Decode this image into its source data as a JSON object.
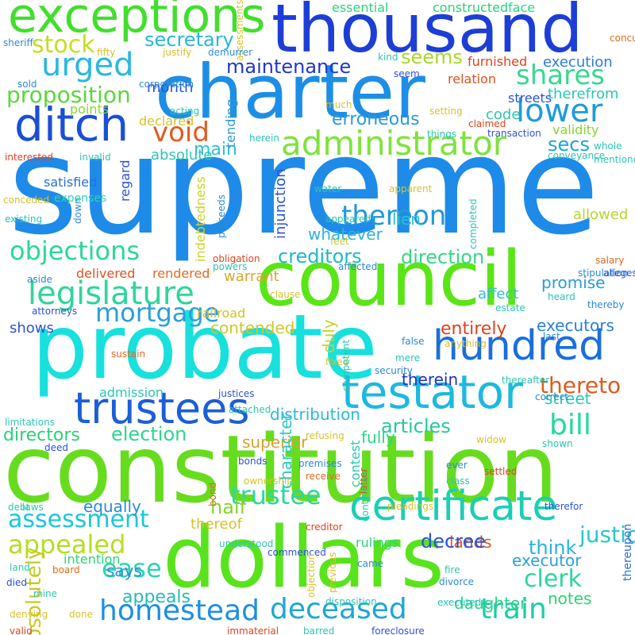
{
  "cloud": {
    "words": [
      {
        "text": "supreme",
        "color": "#1e8be8",
        "vertical": false
      },
      {
        "text": "constitution",
        "color": "#67dc1f",
        "vertical": false
      },
      {
        "text": "probate",
        "color": "#18e0dd",
        "vertical": false
      },
      {
        "text": "dollars",
        "color": "#59e31c",
        "vertical": false
      },
      {
        "text": "council",
        "color": "#5ae516",
        "vertical": false
      },
      {
        "text": "charter",
        "color": "#1d8ee6",
        "vertical": false
      },
      {
        "text": "thousand",
        "color": "#1d3ed6",
        "vertical": false
      },
      {
        "text": "exceptions",
        "color": "#41df2d",
        "vertical": false
      },
      {
        "text": "testator",
        "color": "#1cb9e0",
        "vertical": false
      },
      {
        "text": "trustees",
        "color": "#1c5ed8",
        "vertical": false
      },
      {
        "text": "hundred",
        "color": "#1a6fdb",
        "vertical": false
      },
      {
        "text": "certificate",
        "color": "#1acfb2",
        "vertical": false
      },
      {
        "text": "ditch",
        "color": "#1a4fd6",
        "vertical": false
      },
      {
        "text": "administrator",
        "color": "#7ee33a",
        "vertical": false
      },
      {
        "text": "legislature",
        "color": "#2fd59a",
        "vertical": false
      },
      {
        "text": "homestead",
        "color": "#1d8fe2",
        "vertical": false
      },
      {
        "text": "deceased",
        "color": "#1fa6d4",
        "vertical": false
      },
      {
        "text": "train",
        "color": "#1dcda4",
        "vertical": false
      },
      {
        "text": "objections",
        "color": "#2bd795",
        "vertical": false
      },
      {
        "text": "assessment",
        "color": "#1ac6df",
        "vertical": false
      },
      {
        "text": "appealed",
        "color": "#b6dd22",
        "vertical": false
      },
      {
        "text": "urged",
        "color": "#2ab8e0",
        "vertical": false
      },
      {
        "text": "shares",
        "color": "#38d88e",
        "vertical": false
      },
      {
        "text": "lower",
        "color": "#1b9cd8",
        "vertical": false
      },
      {
        "text": "mortgage",
        "color": "#2a9fd8",
        "vertical": false
      },
      {
        "text": "bill",
        "color": "#25d99b",
        "vertical": false
      },
      {
        "text": "trustee",
        "color": "#2ed7a0",
        "vertical": false
      },
      {
        "text": "void",
        "color": "#e05a22",
        "vertical": false
      },
      {
        "text": "ease",
        "color": "#2ad6b0",
        "vertical": false
      },
      {
        "text": "election",
        "color": "#2fd68c",
        "vertical": false
      },
      {
        "text": "direction",
        "color": "#34d886",
        "vertical": false
      },
      {
        "text": "creditors",
        "color": "#1db9c6",
        "vertical": false
      },
      {
        "text": "stock",
        "color": "#c6dd25",
        "vertical": false
      },
      {
        "text": "secretary",
        "color": "#27b7dd",
        "vertical": false
      },
      {
        "text": "proposition",
        "color": "#5bd83a",
        "vertical": false
      },
      {
        "text": "maintenance",
        "color": "#2238c9",
        "vertical": false
      },
      {
        "text": "seems",
        "color": "#a8d92a",
        "vertical": false
      },
      {
        "text": "secs",
        "color": "#1aa7d4",
        "vertical": false
      },
      {
        "text": "main",
        "color": "#2bbfd4",
        "vertical": false
      },
      {
        "text": "thereon",
        "color": "#1f9ad8",
        "vertical": false
      },
      {
        "text": "thereto",
        "color": "#e05a1e",
        "vertical": false
      },
      {
        "text": "entirely",
        "color": "#e0421b",
        "vertical": false
      },
      {
        "text": "executors",
        "color": "#2a7fdb",
        "vertical": false
      },
      {
        "text": "articles",
        "color": "#26c99c",
        "vertical": false
      },
      {
        "text": "clerk",
        "color": "#2bd59e",
        "vertical": false
      },
      {
        "text": "justice",
        "color": "#2ac7cf",
        "vertical": false
      },
      {
        "text": "think",
        "color": "#25b3dd",
        "vertical": false
      },
      {
        "text": "directors",
        "color": "#2ad07a",
        "vertical": false
      },
      {
        "text": "absolutely",
        "color": "#c9c82a",
        "vertical": true
      },
      {
        "text": "duly",
        "color": "#c7d02a",
        "vertical": true
      },
      {
        "text": "distribution",
        "color": "#2bb8dd",
        "vertical": false
      },
      {
        "text": "superior",
        "color": "#d6a22a",
        "vertical": false
      },
      {
        "text": "half",
        "color": "#86d42f",
        "vertical": false
      },
      {
        "text": "appeals",
        "color": "#2bb9b9",
        "vertical": false
      },
      {
        "text": "says",
        "color": "#2f8fdb",
        "vertical": false
      },
      {
        "text": "lands",
        "color": "#e05a1e",
        "vertical": false
      },
      {
        "text": "executor",
        "color": "#2aa2dc",
        "vertical": false
      },
      {
        "text": "daughter",
        "color": "#2ad18e",
        "vertical": false
      },
      {
        "text": "notes",
        "color": "#2bd56f",
        "vertical": false
      },
      {
        "text": "decree",
        "color": "#2b52d8",
        "vertical": false
      },
      {
        "text": "character",
        "color": "#2ac9bf",
        "vertical": true
      },
      {
        "text": "street",
        "color": "#2ac6b5",
        "vertical": false
      },
      {
        "text": "fully",
        "color": "#2bd584",
        "vertical": false
      },
      {
        "text": "therein",
        "color": "#2131c4",
        "vertical": false
      },
      {
        "text": "contended",
        "color": "#d0c62a",
        "vertical": false
      },
      {
        "text": "whatever",
        "color": "#2bb4d8",
        "vertical": false
      },
      {
        "text": "lien",
        "color": "#2bbfd4",
        "vertical": false
      },
      {
        "text": "allowed",
        "color": "#b8d62c",
        "vertical": false
      },
      {
        "text": "affect",
        "color": "#2bc1d4",
        "vertical": false
      },
      {
        "text": "promise",
        "color": "#2b9ad6",
        "vertical": false
      },
      {
        "text": "shows",
        "color": "#2d52d6",
        "vertical": false
      },
      {
        "text": "delivered",
        "color": "#e0521e",
        "vertical": false
      },
      {
        "text": "rendered",
        "color": "#e06a1e",
        "vertical": false
      },
      {
        "text": "warrant",
        "color": "#d6a82a",
        "vertical": false
      },
      {
        "text": "face",
        "color": "#2bd584",
        "vertical": false
      },
      {
        "text": "essential",
        "color": "#2bd57a",
        "vertical": false
      },
      {
        "text": "constructed",
        "color": "#2bd07a",
        "vertical": false
      },
      {
        "text": "execution",
        "color": "#2b7ddb",
        "vertical": false
      },
      {
        "text": "furnished",
        "color": "#e0421b",
        "vertical": false
      },
      {
        "text": "relation",
        "color": "#e0521e",
        "vertical": false
      },
      {
        "text": "therefrom",
        "color": "#2bc6b1",
        "vertical": false
      },
      {
        "text": "validity",
        "color": "#8ad42f",
        "vertical": false
      },
      {
        "text": "erroneous",
        "color": "#2b9ad6",
        "vertical": false
      },
      {
        "text": "code",
        "color": "#2bc6b1",
        "vertical": false
      },
      {
        "text": "streets",
        "color": "#2b52d8",
        "vertical": false
      },
      {
        "text": "month",
        "color": "#2b52d8",
        "vertical": false
      },
      {
        "text": "points",
        "color": "#8ad42f",
        "vertical": false
      },
      {
        "text": "absolute",
        "color": "#2bc6b1",
        "vertical": false
      },
      {
        "text": "satisfied",
        "color": "#2b6ed6",
        "vertical": false
      },
      {
        "text": "expenses",
        "color": "#2bd5b0",
        "vertical": false
      },
      {
        "text": "equally",
        "color": "#2b8ad6",
        "vertical": false
      },
      {
        "text": "intention",
        "color": "#2bd57a",
        "vertical": false
      },
      {
        "text": "thereof",
        "color": "#d6c22a",
        "vertical": false
      },
      {
        "text": "rulings",
        "color": "#2bd57a",
        "vertical": false
      },
      {
        "text": "admission",
        "color": "#2bc6b1",
        "vertical": false
      },
      {
        "text": "railroad",
        "color": "#d6c22a",
        "vertical": false
      },
      {
        "text": "declared",
        "color": "#d6c22a",
        "vertical": false
      },
      {
        "text": "indebtedness",
        "color": "#c8d62a",
        "vertical": true
      },
      {
        "text": "injunction",
        "color": "#2b52d8",
        "vertical": true
      },
      {
        "text": "regard",
        "color": "#2b52d8",
        "vertical": true
      },
      {
        "text": "tending",
        "color": "#2b9ad6",
        "vertical": true
      },
      {
        "text": "contest",
        "color": "#2bc6b1",
        "vertical": true
      },
      {
        "text": "thereupon",
        "color": "#2b6ed6",
        "vertical": true
      },
      {
        "text": "assessments",
        "color": "#d6c22a",
        "vertical": true
      },
      {
        "text": "sheriff",
        "color": "#2b8ad6",
        "vertical": false
      },
      {
        "text": "fifty",
        "color": "#d6c22a",
        "vertical": false
      },
      {
        "text": "justify",
        "color": "#d6c22a",
        "vertical": false
      },
      {
        "text": "demurrer",
        "color": "#2b8ad6",
        "vertical": false
      },
      {
        "text": "concurred",
        "color": "#e06a1e",
        "vertical": false
      },
      {
        "text": "sold",
        "color": "#2b8ad6",
        "vertical": false
      },
      {
        "text": "corporation",
        "color": "#2b8ad6",
        "vertical": false
      },
      {
        "text": "kind",
        "color": "#2bc6b1",
        "vertical": false
      },
      {
        "text": "seem",
        "color": "#2b52d8",
        "vertical": false
      },
      {
        "text": "acting",
        "color": "#2bc6b1",
        "vertical": false
      },
      {
        "text": "much",
        "color": "#d6c22a",
        "vertical": false
      },
      {
        "text": "setting",
        "color": "#d6c22a",
        "vertical": false
      },
      {
        "text": "claimed",
        "color": "#e0421b",
        "vertical": false
      },
      {
        "text": "herein",
        "color": "#2bc6b1",
        "vertical": false
      },
      {
        "text": "things",
        "color": "#2bc6b1",
        "vertical": false
      },
      {
        "text": "transaction",
        "color": "#2b52d8",
        "vertical": false
      },
      {
        "text": "interested",
        "color": "#e0421b",
        "vertical": false
      },
      {
        "text": "invalid",
        "color": "#2bc6b1",
        "vertical": false
      },
      {
        "text": "conveyance",
        "color": "#2bc6b1",
        "vertical": false
      },
      {
        "text": "mentioned",
        "color": "#2bc6b1",
        "vertical": false
      },
      {
        "text": "whole",
        "color": "#2bc6b1",
        "vertical": false
      },
      {
        "text": "water",
        "color": "#2bc6b1",
        "vertical": false
      },
      {
        "text": "apparent",
        "color": "#d6c22a",
        "vertical": false
      },
      {
        "text": "existing",
        "color": "#2bc6b1",
        "vertical": false
      },
      {
        "text": "appeared",
        "color": "#2bc6b1",
        "vertical": false
      },
      {
        "text": "feet",
        "color": "#d6c22a",
        "vertical": false
      },
      {
        "text": "obligation",
        "color": "#e0421b",
        "vertical": false
      },
      {
        "text": "powers",
        "color": "#2bc6b1",
        "vertical": false
      },
      {
        "text": "affected",
        "color": "#2b8ad6",
        "vertical": false
      },
      {
        "text": "stipulation",
        "color": "#2b8ad6",
        "vertical": false
      },
      {
        "text": "alleges",
        "color": "#2b52d8",
        "vertical": false
      },
      {
        "text": "salary",
        "color": "#e06a1e",
        "vertical": false
      },
      {
        "text": "aside",
        "color": "#2b8ad6",
        "vertical": false
      },
      {
        "text": "clause",
        "color": "#d6c22a",
        "vertical": false
      },
      {
        "text": "heard",
        "color": "#2bc6b1",
        "vertical": false
      },
      {
        "text": "estate",
        "color": "#2bc6b1",
        "vertical": false
      },
      {
        "text": "thereby",
        "color": "#2b8ad6",
        "vertical": false
      },
      {
        "text": "attorneys",
        "color": "#2b52d8",
        "vertical": false
      },
      {
        "text": "last",
        "color": "#2b8ad6",
        "vertical": false
      },
      {
        "text": "anything",
        "color": "#d6c22a",
        "vertical": false
      },
      {
        "text": "sustain",
        "color": "#e06a1e",
        "vertical": false
      },
      {
        "text": "false",
        "color": "#2b8ad6",
        "vertical": false
      },
      {
        "text": "fixed",
        "color": "#d6c22a",
        "vertical": false
      },
      {
        "text": "mere",
        "color": "#2bc6b1",
        "vertical": false
      },
      {
        "text": "security",
        "color": "#2b8ad6",
        "vertical": false
      },
      {
        "text": "thereafter",
        "color": "#2bc6b1",
        "vertical": false
      },
      {
        "text": "correct",
        "color": "#2b8ad6",
        "vertical": false
      },
      {
        "text": "justices",
        "color": "#2b52d8",
        "vertical": false
      },
      {
        "text": "attached",
        "color": "#2bc6b1",
        "vertical": false
      },
      {
        "text": "limitations",
        "color": "#2bc6b1",
        "vertical": false
      },
      {
        "text": "refusing",
        "color": "#d6c22a",
        "vertical": false
      },
      {
        "text": "widow",
        "color": "#d6c22a",
        "vertical": false
      },
      {
        "text": "shown",
        "color": "#2bc6b1",
        "vertical": false
      },
      {
        "text": "deed",
        "color": "#2b52d8",
        "vertical": false
      },
      {
        "text": "bonds",
        "color": "#2b52d8",
        "vertical": false
      },
      {
        "text": "premises",
        "color": "#2b8ad6",
        "vertical": false
      },
      {
        "text": "ever",
        "color": "#2b8ad6",
        "vertical": false
      },
      {
        "text": "settled",
        "color": "#e0421b",
        "vertical": false
      },
      {
        "text": "class",
        "color": "#2bc6b1",
        "vertical": false
      },
      {
        "text": "ownership",
        "color": "#d6c22a",
        "vertical": false
      },
      {
        "text": "receive",
        "color": "#e06a1e",
        "vertical": false
      },
      {
        "text": "debt",
        "color": "#2bc6b1",
        "vertical": false
      },
      {
        "text": "laws",
        "color": "#2bc6b1",
        "vertical": false
      },
      {
        "text": "pleadings",
        "color": "#d6c22a",
        "vertical": false
      },
      {
        "text": "therefor",
        "color": "#2b52d8",
        "vertical": false
      },
      {
        "text": "creditor",
        "color": "#e0421b",
        "vertical": false
      },
      {
        "text": "understood",
        "color": "#2bc6b1",
        "vertical": false
      },
      {
        "text": "commenced",
        "color": "#2b52d8",
        "vertical": false
      },
      {
        "text": "land",
        "color": "#2bc6b1",
        "vertical": false
      },
      {
        "text": "board",
        "color": "#e06a1e",
        "vertical": false
      },
      {
        "text": "died",
        "color": "#2b52d8",
        "vertical": false
      },
      {
        "text": "mine",
        "color": "#2bc6b1",
        "vertical": false
      },
      {
        "text": "came",
        "color": "#2b8ad6",
        "vertical": false
      },
      {
        "text": "fire",
        "color": "#2bc6b1",
        "vertical": false
      },
      {
        "text": "divorce",
        "color": "#2b8ad6",
        "vertical": false
      },
      {
        "text": "disposition",
        "color": "#2bc6b1",
        "vertical": false
      },
      {
        "text": "executed",
        "color": "#2bc6b1",
        "vertical": false
      },
      {
        "text": "denying",
        "color": "#d6c22a",
        "vertical": false
      },
      {
        "text": "done",
        "color": "#d6c22a",
        "vertical": false
      },
      {
        "text": "valid",
        "color": "#e0421b",
        "vertical": false
      },
      {
        "text": "immaterial",
        "color": "#e0421b",
        "vertical": false
      },
      {
        "text": "barred",
        "color": "#2bc6b1",
        "vertical": false
      },
      {
        "text": "foreclosure",
        "color": "#2b52d8",
        "vertical": false
      },
      {
        "text": "conceded",
        "color": "#d6c22a",
        "vertical": false
      },
      {
        "text": "down",
        "color": "#2b8ad6",
        "vertical": true
      },
      {
        "text": "proceeds",
        "color": "#2b8ad6",
        "vertical": true
      },
      {
        "text": "completed",
        "color": "#2bc6b1",
        "vertical": true
      },
      {
        "text": "competent",
        "color": "#2bc6b1",
        "vertical": true
      },
      {
        "text": "latter",
        "color": "#e0421b",
        "vertical": true
      },
      {
        "text": "bond",
        "color": "#e06a1e",
        "vertical": true
      },
      {
        "text": "contention",
        "color": "#2bc6b1",
        "vertical": true
      },
      {
        "text": "objection",
        "color": "#d6c22a",
        "vertical": true
      },
      {
        "text": "previous",
        "color": "#d6c22a",
        "vertical": true
      },
      {
        "text": "hence",
        "color": "#2b8ad6",
        "vertical": true
      }
    ]
  }
}
